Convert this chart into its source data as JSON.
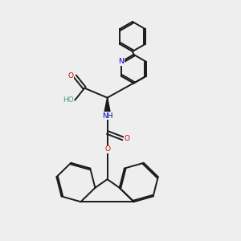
{
  "bg": "#eeeeee",
  "bond_color": "#1a1a1a",
  "N_color": "#0000cc",
  "O_color": "#cc0000",
  "H_color": "#4a9a8a",
  "figsize": [
    3.0,
    3.0
  ],
  "dpi": 100,
  "xlim": [
    0,
    10
  ],
  "ylim": [
    0,
    10
  ]
}
